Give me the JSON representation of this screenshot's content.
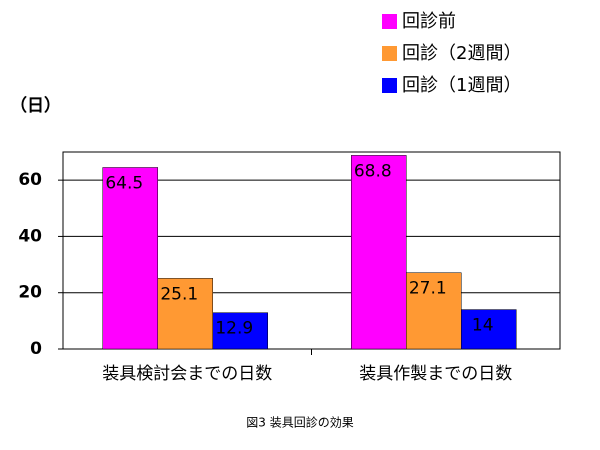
{
  "chart_data": {
    "type": "bar",
    "title": "図3 装具回診の効果",
    "y_label": "（日）",
    "categories": [
      "装具検討会までの日数",
      "装具作製までの日数"
    ],
    "series": [
      {
        "name": "回診前",
        "color": "#ff00ff",
        "values": [
          64.5,
          68.8
        ]
      },
      {
        "name": "回診（2週間）",
        "color": "#ff9933",
        "values": [
          25.1,
          27.1
        ]
      },
      {
        "name": "回診（1週間）",
        "color": "#0000ff",
        "values": [
          12.9,
          14
        ]
      }
    ],
    "ylim": [
      0,
      70
    ],
    "yticks": [
      0,
      20,
      40,
      60
    ],
    "grid": true
  }
}
